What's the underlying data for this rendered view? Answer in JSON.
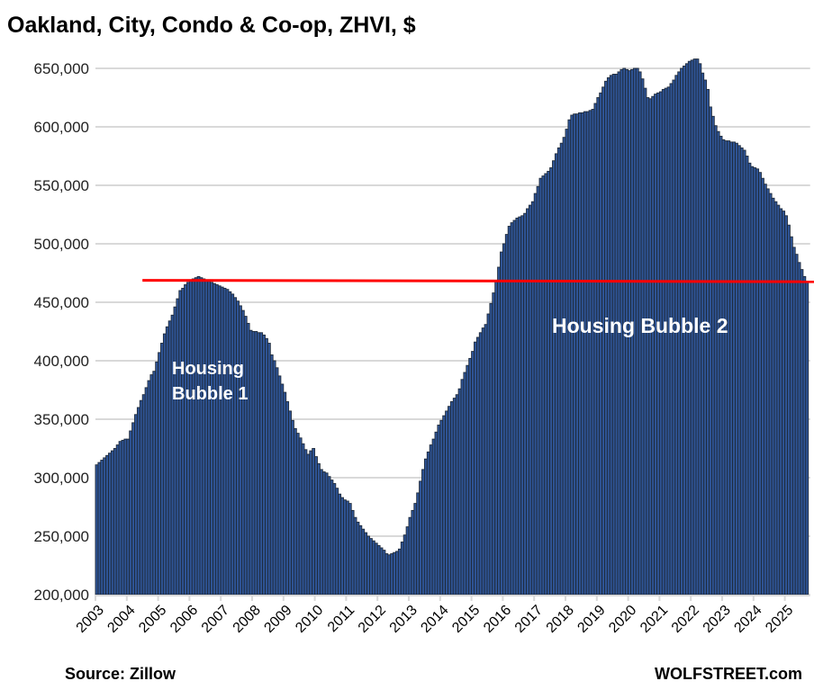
{
  "chart_data": {
    "type": "bar",
    "title": "Oakland, City, Condo & Co-op, ZHVI, $",
    "xlabel": "",
    "ylabel": "",
    "x_start": "2003-01",
    "x_frequency": "monthly",
    "x_tick_labels": [
      "2003",
      "2004",
      "2005",
      "2006",
      "2007",
      "2008",
      "2009",
      "2010",
      "2011",
      "2012",
      "2013",
      "2014",
      "2015",
      "2016",
      "2017",
      "2018",
      "2019",
      "2020",
      "2021",
      "2022",
      "2023",
      "2024",
      "2025"
    ],
    "y_tick_labels": [
      "200,000",
      "250,000",
      "300,000",
      "350,000",
      "400,000",
      "450,000",
      "500,000",
      "550,000",
      "600,000",
      "650,000"
    ],
    "ylim": [
      200000,
      660000
    ],
    "grid": true,
    "legend": "none",
    "bar_color": "#2f5597",
    "bar_edge_color": "#1e2a3a",
    "values": [
      311000,
      313000,
      315000,
      317000,
      319000,
      321000,
      323000,
      325000,
      328000,
      331000,
      332000,
      333000,
      333000,
      340000,
      347000,
      354000,
      360000,
      366000,
      371000,
      377000,
      383000,
      388000,
      391000,
      399000,
      407000,
      415000,
      423000,
      429000,
      434000,
      439000,
      446000,
      453000,
      460000,
      462000,
      465000,
      467000,
      468000,
      470000,
      471000,
      472000,
      471000,
      470000,
      469000,
      468000,
      467000,
      466000,
      465000,
      464000,
      463000,
      462000,
      461000,
      459000,
      457000,
      454000,
      451000,
      447000,
      443000,
      438000,
      432000,
      426000,
      425000,
      425000,
      424000,
      424000,
      422000,
      419000,
      415000,
      405000,
      400000,
      394000,
      387000,
      380000,
      373000,
      365000,
      357000,
      349000,
      342000,
      338000,
      334000,
      329000,
      324000,
      320000,
      323000,
      325000,
      318000,
      312000,
      307000,
      305000,
      304000,
      301000,
      298000,
      295000,
      291000,
      286000,
      283000,
      281000,
      280000,
      278000,
      272000,
      266000,
      262000,
      259000,
      256000,
      253000,
      250000,
      248000,
      246000,
      244000,
      242000,
      240000,
      238000,
      235000,
      234000,
      235000,
      236000,
      237000,
      239000,
      245000,
      251000,
      258000,
      266000,
      272000,
      278000,
      287000,
      297000,
      307000,
      316000,
      322000,
      328000,
      333000,
      339000,
      345000,
      349000,
      353000,
      357000,
      361000,
      365000,
      368000,
      371000,
      376000,
      384000,
      390000,
      396000,
      402000,
      408000,
      416000,
      420000,
      424000,
      428000,
      431000,
      440000,
      449000,
      458000,
      468000,
      480000,
      493000,
      500000,
      508000,
      515000,
      518000,
      520000,
      522000,
      523000,
      524000,
      526000,
      530000,
      533000,
      536000,
      543000,
      549000,
      556000,
      558000,
      560000,
      562000,
      565000,
      571000,
      577000,
      582000,
      586000,
      591000,
      598000,
      606000,
      610000,
      611000,
      611000,
      612000,
      612000,
      613000,
      613000,
      614000,
      615000,
      620000,
      625000,
      629000,
      634000,
      639000,
      642000,
      644000,
      645000,
      645000,
      647000,
      649000,
      650000,
      649000,
      648000,
      649000,
      650000,
      650000,
      647000,
      641000,
      633000,
      625000,
      624000,
      626000,
      628000,
      629000,
      630000,
      632000,
      633000,
      634000,
      637000,
      640000,
      644000,
      647000,
      650000,
      652000,
      654000,
      656000,
      657000,
      658000,
      658000,
      654000,
      646000,
      640000,
      632000,
      617000,
      609000,
      601000,
      596000,
      592000,
      589000,
      588000,
      588000,
      587000,
      587000,
      586000,
      584000,
      582000,
      580000,
      575000,
      569000,
      566000,
      565000,
      564000,
      561000,
      556000,
      551000,
      547000,
      543000,
      539000,
      536000,
      533000,
      530000,
      528000,
      524000,
      516000,
      506000,
      497000,
      491000,
      484000,
      478000,
      472000,
      468000
    ],
    "reference_line": {
      "value": 468000,
      "start": "2004-07",
      "color": "#ff0000"
    },
    "annotations": [
      {
        "text_lines": [
          "Housing",
          "Bubble 1"
        ]
      },
      {
        "text_lines": [
          "Housing Bubble 2"
        ]
      }
    ]
  },
  "footer": {
    "source": "Source: Zillow",
    "brand": "WOLFSTREET.com"
  }
}
